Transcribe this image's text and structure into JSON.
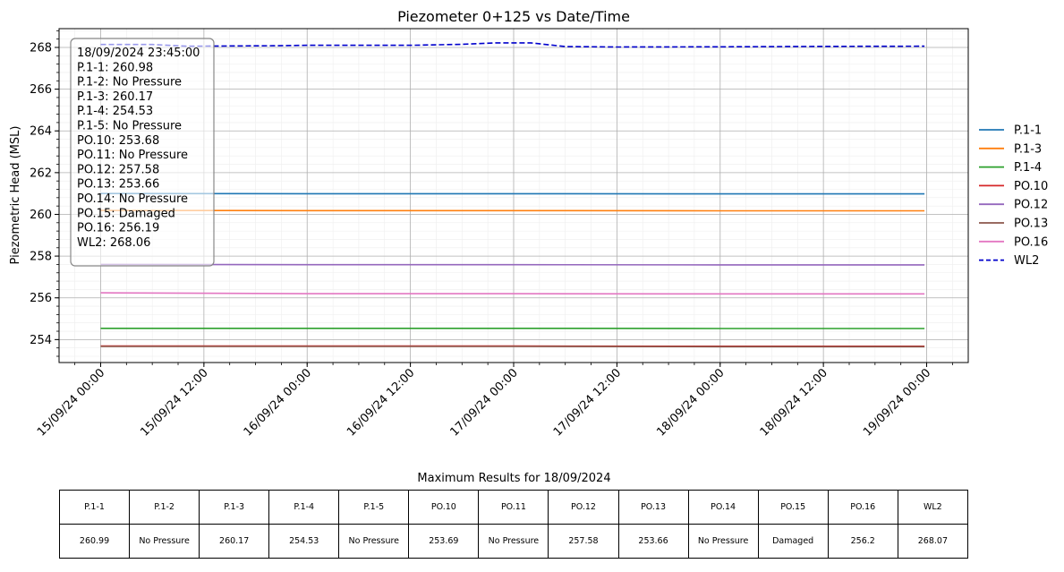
{
  "chart_data": {
    "type": "line",
    "title": "Piezometer 0+125 vs Date/Time",
    "xlabel": "",
    "ylabel": "Piezometric Head (MSL)",
    "x_range": [
      "2024-09-14 19:10",
      "2024-09-19 04:50"
    ],
    "ylim": [
      252.9,
      268.9
    ],
    "yticks": [
      254,
      256,
      258,
      260,
      262,
      264,
      266,
      268
    ],
    "xticks": [
      "2024-09-15 00:00",
      "2024-09-15 12:00",
      "2024-09-16 00:00",
      "2024-09-16 12:00",
      "2024-09-17 00:00",
      "2024-09-17 12:00",
      "2024-09-18 00:00",
      "2024-09-18 12:00",
      "2024-09-19 00:00"
    ],
    "xtick_labels": [
      "15/09/24 00:00",
      "15/09/24 12:00",
      "16/09/24 00:00",
      "16/09/24 12:00",
      "17/09/24 00:00",
      "17/09/24 12:00",
      "18/09/24 00:00",
      "18/09/24 12:00",
      "19/09/24 00:00"
    ],
    "grid": true,
    "legend_position": "right",
    "series": [
      {
        "name": "P.1-1",
        "color": "#1f77b4",
        "dash": "solid",
        "x": [
          "2024-09-15 00:00",
          "2024-09-16 00:00",
          "2024-09-17 00:00",
          "2024-09-18 00:00",
          "2024-09-18 23:45"
        ],
        "y": [
          261.0,
          260.99,
          260.99,
          260.98,
          260.98
        ]
      },
      {
        "name": "P.1-3",
        "color": "#ff7f0e",
        "dash": "solid",
        "x": [
          "2024-09-15 00:00",
          "2024-09-16 00:00",
          "2024-09-17 00:00",
          "2024-09-18 00:00",
          "2024-09-18 23:45"
        ],
        "y": [
          260.19,
          260.18,
          260.18,
          260.17,
          260.17
        ]
      },
      {
        "name": "P.1-4",
        "color": "#2ca02c",
        "dash": "solid",
        "x": [
          "2024-09-15 00:00",
          "2024-09-16 00:00",
          "2024-09-17 00:00",
          "2024-09-18 00:00",
          "2024-09-18 23:45"
        ],
        "y": [
          254.54,
          254.54,
          254.54,
          254.53,
          254.53
        ]
      },
      {
        "name": "PO.10",
        "color": "#d62728",
        "dash": "solid",
        "x": [
          "2024-09-15 00:00",
          "2024-09-16 00:00",
          "2024-09-17 00:00",
          "2024-09-18 00:00",
          "2024-09-18 23:45"
        ],
        "y": [
          253.69,
          253.69,
          253.69,
          253.68,
          253.68
        ]
      },
      {
        "name": "PO.12",
        "color": "#9467bd",
        "dash": "solid",
        "x": [
          "2024-09-15 00:00",
          "2024-09-16 00:00",
          "2024-09-17 00:00",
          "2024-09-18 00:00",
          "2024-09-18 23:45"
        ],
        "y": [
          257.6,
          257.59,
          257.59,
          257.58,
          257.58
        ]
      },
      {
        "name": "PO.13",
        "color": "#8c564b",
        "dash": "solid",
        "x": [
          "2024-09-15 00:00",
          "2024-09-16 00:00",
          "2024-09-17 00:00",
          "2024-09-18 00:00",
          "2024-09-18 23:45"
        ],
        "y": [
          253.67,
          253.67,
          253.67,
          253.66,
          253.66
        ]
      },
      {
        "name": "PO.16",
        "color": "#e377c2",
        "dash": "solid",
        "x": [
          "2024-09-15 00:00",
          "2024-09-16 00:00",
          "2024-09-17 00:00",
          "2024-09-18 00:00",
          "2024-09-18 23:45"
        ],
        "y": [
          256.24,
          256.2,
          256.2,
          256.19,
          256.19
        ]
      },
      {
        "name": "WL2",
        "color": "#0000cc",
        "dash": "dashed",
        "x": [
          "2024-09-15 00:00",
          "2024-09-15 06:00",
          "2024-09-15 10:00",
          "2024-09-15 20:00",
          "2024-09-16 00:00",
          "2024-09-16 12:00",
          "2024-09-16 18:00",
          "2024-09-16 22:00",
          "2024-09-17 02:00",
          "2024-09-17 06:00",
          "2024-09-17 12:00",
          "2024-09-18 00:00",
          "2024-09-18 12:00",
          "2024-09-18 23:45"
        ],
        "y": [
          268.14,
          268.14,
          268.06,
          268.08,
          268.1,
          268.1,
          268.15,
          268.22,
          268.22,
          268.04,
          268.02,
          268.03,
          268.05,
          268.06
        ]
      }
    ]
  },
  "annotation": {
    "lines": [
      "18/09/2024 23:45:00",
      "P.1-1: 260.98",
      "P.1-2: No Pressure",
      "P.1-3: 260.17",
      "P.1-4: 254.53",
      "P.1-5: No Pressure",
      "PO.10: 253.68",
      "PO.11: No Pressure",
      "PO.12: 257.58",
      "PO.13: 253.66",
      "PO.14: No Pressure",
      "PO.15: Damaged",
      "PO.16: 256.19",
      "WL2: 268.06"
    ]
  },
  "results_table": {
    "title": "Maximum Results for 18/09/2024",
    "headers": [
      "P.1-1",
      "P.1-2",
      "P.1-3",
      "P.1-4",
      "P.1-5",
      "PO.10",
      "PO.11",
      "PO.12",
      "PO.13",
      "PO.14",
      "PO.15",
      "PO.16",
      "WL2"
    ],
    "values": [
      "260.99",
      "No Pressure",
      "260.17",
      "254.53",
      "No Pressure",
      "253.69",
      "No Pressure",
      "257.58",
      "253.66",
      "No Pressure",
      "Damaged",
      "256.2",
      "268.07"
    ]
  }
}
